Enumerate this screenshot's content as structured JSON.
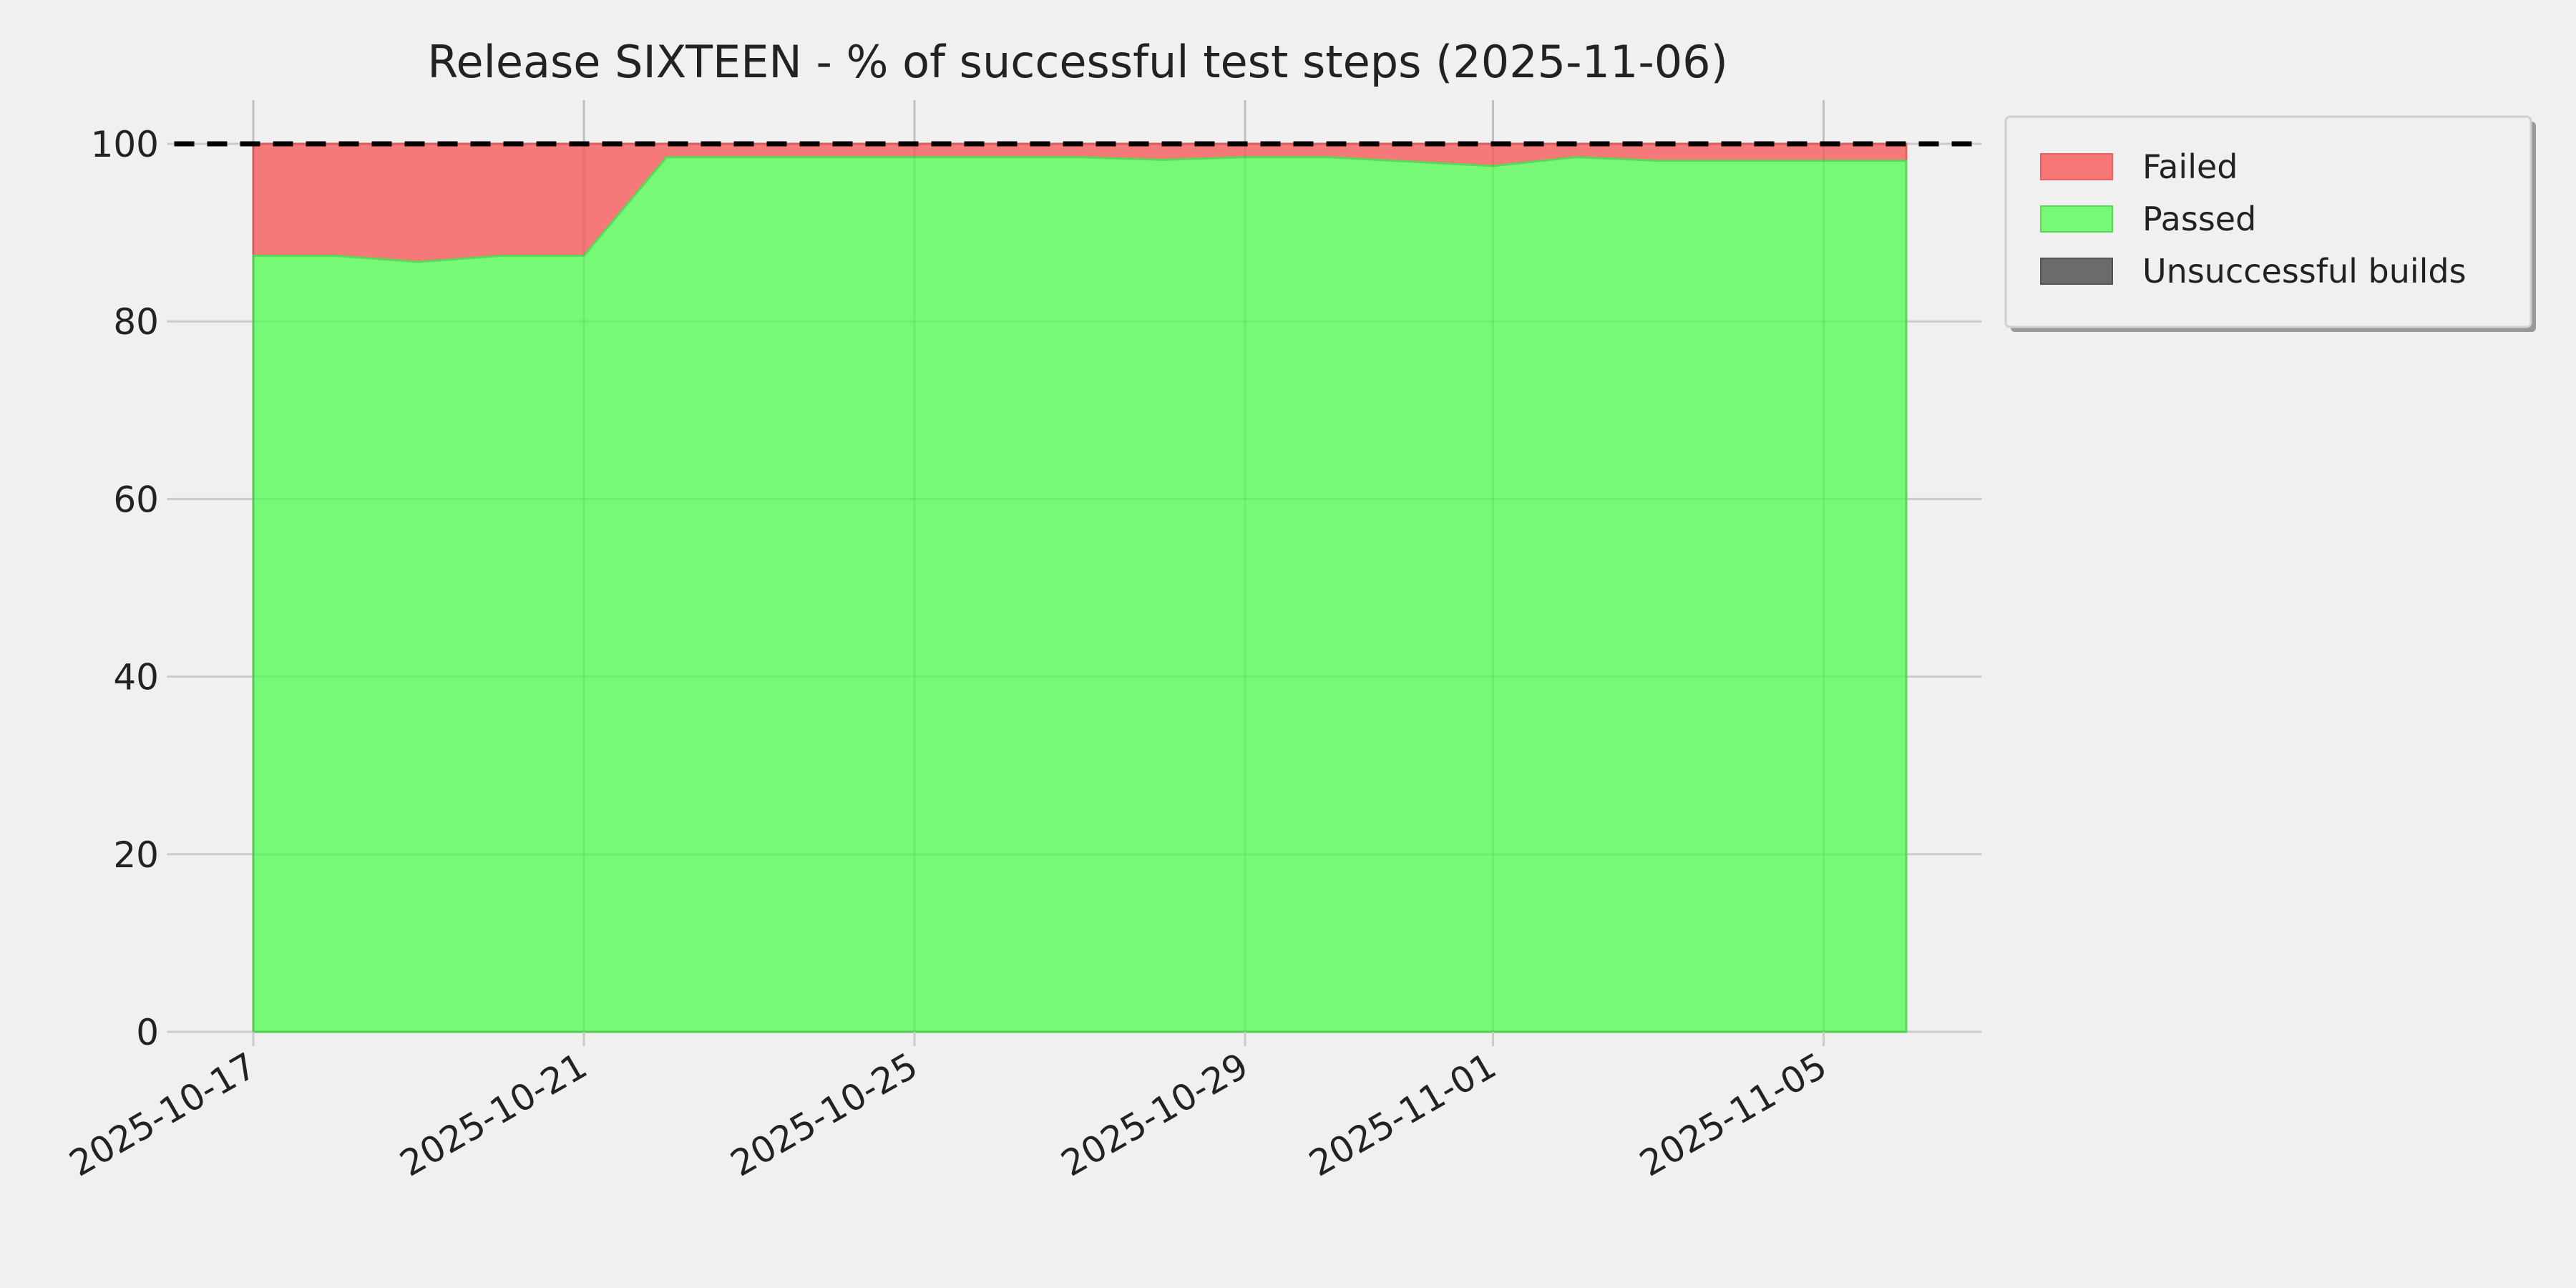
{
  "chart_data": {
    "type": "area",
    "stacked": true,
    "title": "Release SIXTEEN - % of successful test steps (2025-11-06)",
    "xlabel": "",
    "ylabel": "",
    "x": [
      "2025-10-17",
      "2025-10-18",
      "2025-10-19",
      "2025-10-20",
      "2025-10-21",
      "2025-10-22",
      "2025-10-23",
      "2025-10-24",
      "2025-10-25",
      "2025-10-26",
      "2025-10-27",
      "2025-10-28",
      "2025-10-29",
      "2025-10-30",
      "2025-10-31",
      "2025-11-01",
      "2025-11-02",
      "2025-11-03",
      "2025-11-04",
      "2025-11-05",
      "2025-11-06"
    ],
    "series": [
      {
        "name": "Passed",
        "color": "#77f977",
        "values": [
          87.4,
          87.4,
          86.7,
          87.4,
          87.4,
          98.5,
          98.5,
          98.5,
          98.5,
          98.5,
          98.5,
          98.2,
          98.5,
          98.5,
          98.0,
          97.5,
          98.5,
          98.1,
          98.1,
          98.1,
          98.1
        ]
      },
      {
        "name": "Failed",
        "color": "#f77777",
        "values": [
          12.6,
          12.6,
          13.3,
          12.6,
          12.6,
          1.5,
          1.5,
          1.5,
          1.5,
          1.5,
          1.5,
          1.8,
          1.5,
          1.5,
          2.0,
          2.5,
          1.5,
          1.9,
          1.9,
          1.9,
          1.9
        ]
      },
      {
        "name": "Unsuccessful builds",
        "color": "#6b6b6b",
        "values": [
          0,
          0,
          0,
          0,
          0,
          0,
          0,
          0,
          0,
          0,
          0,
          0,
          0,
          0,
          0,
          0,
          0,
          0,
          0,
          0,
          0
        ]
      }
    ],
    "legend_order": [
      "Failed",
      "Passed",
      "Unsuccessful builds"
    ],
    "reference_line": {
      "y": 100,
      "style": "dashed",
      "color": "#000000"
    },
    "xticks": [
      "2025-10-17",
      "2025-10-21",
      "2025-10-25",
      "2025-10-29",
      "2025-11-01",
      "2025-11-05"
    ],
    "yticks": [
      0,
      20,
      40,
      60,
      80,
      100
    ],
    "ylim": [
      0,
      100
    ],
    "xlim": [
      "2025-10-16",
      "2025-11-07"
    ],
    "grid": true,
    "legend_position": "outside-top-right",
    "background": "#f0f0f0"
  }
}
